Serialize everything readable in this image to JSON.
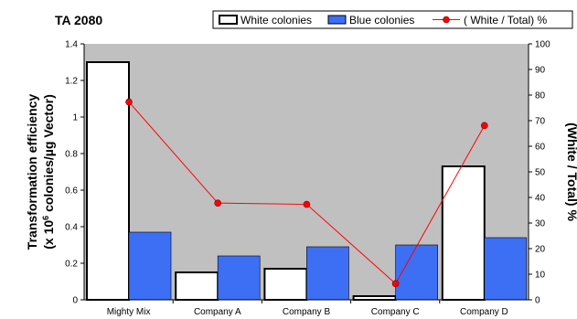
{
  "chart_data": {
    "type": "bar",
    "title": "TA 2080",
    "categories": [
      "Mighty Mix",
      "Company A",
      "Company B",
      "Company C",
      "Company D"
    ],
    "series": [
      {
        "name": "White colonies",
        "kind": "bar",
        "axis": "left",
        "color": "#ffffff",
        "values": [
          1.3,
          0.15,
          0.17,
          0.02,
          0.73
        ]
      },
      {
        "name": "Blue colonies",
        "kind": "bar",
        "axis": "left",
        "color": "#3d6ff5",
        "values": [
          0.37,
          0.24,
          0.29,
          0.3,
          0.34
        ]
      },
      {
        "name": "( White / Total) %",
        "kind": "line",
        "axis": "right",
        "color": "#ff0000",
        "values": [
          77.3,
          37.8,
          37.3,
          6.3,
          68.1
        ]
      }
    ],
    "y_left": {
      "label_line1": "Transformation efficiency",
      "label_line2_pre": "(x 10",
      "label_line2_sup": "6",
      "label_line2_post": " colonies/µg Vector)",
      "ylim": [
        0,
        1.4
      ],
      "ticks": [
        "0",
        "0.2",
        "0.4",
        "0.6",
        "0.8",
        "1",
        "1.2",
        "1.4"
      ]
    },
    "y_right": {
      "label": "(White / Total) %",
      "ylim": [
        0,
        100
      ],
      "ticks": [
        "0",
        "10",
        "20",
        "30",
        "40",
        "50",
        "60",
        "70",
        "80",
        "90",
        "100"
      ]
    },
    "plot_background": "#c0c0c0",
    "grid": false,
    "legend_position": "top"
  }
}
